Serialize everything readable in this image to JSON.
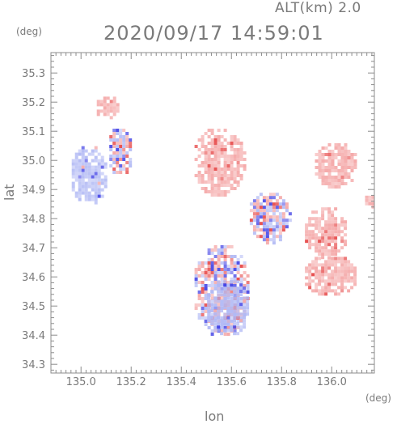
{
  "header": {
    "altitude_label": "ALT(km) 2.0",
    "datetime": "2020/09/17 14:59:01"
  },
  "axes": {
    "x_label": "lon",
    "y_label": "lat",
    "x_unit": "(deg)",
    "y_unit": "(deg)"
  },
  "chart_data": {
    "type": "heatmap",
    "title": "2020/09/17 14:59:01",
    "xlabel": "lon",
    "ylabel": "lat",
    "xlim": [
      134.88,
      136.17
    ],
    "ylim": [
      34.27,
      35.37
    ],
    "x_ticks": [
      135.0,
      135.2,
      135.4,
      135.6,
      135.8,
      136.0
    ],
    "x_tick_labels": [
      "135.0",
      "135.2",
      "135.4",
      "135.6",
      "135.8",
      "136.0"
    ],
    "y_ticks": [
      34.3,
      34.4,
      34.5,
      34.6,
      34.7,
      34.8,
      34.9,
      35.0,
      35.1,
      35.2,
      35.3
    ],
    "y_tick_labels": [
      "34.3",
      "34.4",
      "34.5",
      "34.6",
      "34.7",
      "34.8",
      "34.9",
      "35.0",
      "35.1",
      "35.2",
      "35.3"
    ],
    "grid": false,
    "colors": {
      "positive": "#f4a6a6",
      "negative": "#b0b8f4",
      "strong_positive": "#e64646",
      "strong_negative": "#4646e6",
      "axis": "#8c8c8c"
    },
    "regions": [
      {
        "sign": "positive",
        "lon": [
          135.05,
          135.15
        ],
        "lat": [
          35.15,
          35.23
        ]
      },
      {
        "sign": "negative",
        "lon": [
          134.95,
          135.1
        ],
        "lat": [
          34.85,
          35.06
        ]
      },
      {
        "sign": "mixed",
        "lon": [
          135.1,
          135.2
        ],
        "lat": [
          34.95,
          35.12
        ]
      },
      {
        "sign": "positive",
        "lon": [
          135.44,
          135.65
        ],
        "lat": [
          34.88,
          35.12
        ]
      },
      {
        "sign": "mixed",
        "lon": [
          135.44,
          135.67
        ],
        "lat": [
          34.4,
          34.72
        ]
      },
      {
        "sign": "negative",
        "lon": [
          135.49,
          135.67
        ],
        "lat": [
          34.4,
          34.6
        ]
      },
      {
        "sign": "mixed",
        "lon": [
          135.66,
          135.83
        ],
        "lat": [
          34.72,
          34.9
        ]
      },
      {
        "sign": "positive",
        "lon": [
          135.92,
          136.1
        ],
        "lat": [
          34.91,
          35.07
        ]
      },
      {
        "sign": "positive",
        "lon": [
          135.88,
          136.06
        ],
        "lat": [
          34.67,
          34.85
        ]
      },
      {
        "sign": "positive",
        "lon": [
          135.88,
          136.1
        ],
        "lat": [
          34.54,
          34.68
        ]
      },
      {
        "sign": "positive",
        "lon": [
          136.12,
          136.17
        ],
        "lat": [
          34.84,
          34.89
        ]
      }
    ]
  }
}
